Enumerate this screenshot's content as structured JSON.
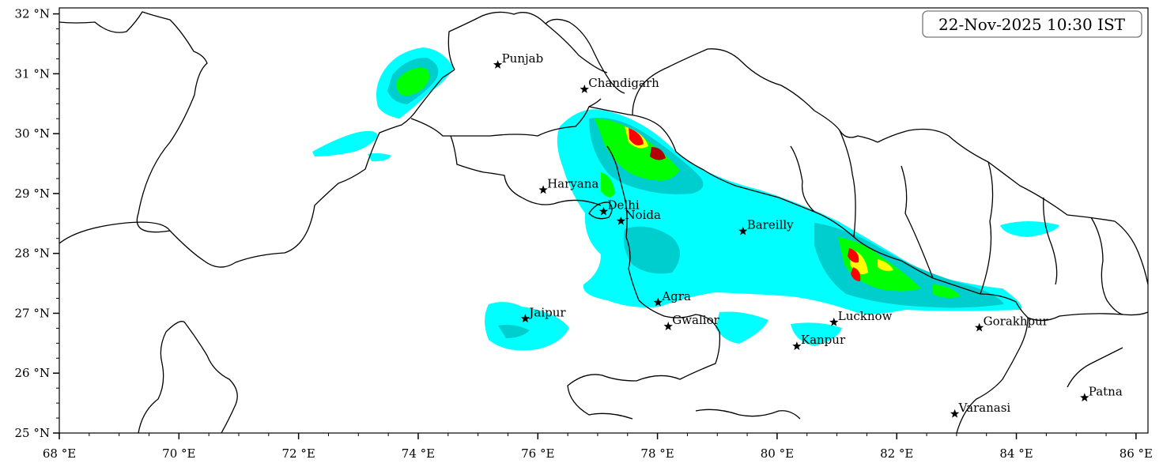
{
  "timestamp": "22-Nov-2025 10:30 IST",
  "colors": {
    "cyan": "#00ffff",
    "teal": "#00cdcd",
    "green": "#00ff00",
    "yellow": "#ffff00",
    "red": "#ff0000",
    "darkred": "#b00000",
    "border": "#000000"
  },
  "axes": {
    "lon_range": [
      68,
      86.2
    ],
    "lat_range": [
      25,
      32.1
    ],
    "x_ticks": [
      {
        "value": 68,
        "label": "68 °E"
      },
      {
        "value": 70,
        "label": "70 °E"
      },
      {
        "value": 72,
        "label": "72 °E"
      },
      {
        "value": 74,
        "label": "74 °E"
      },
      {
        "value": 76,
        "label": "76 °E"
      },
      {
        "value": 78,
        "label": "78 °E"
      },
      {
        "value": 80,
        "label": "80 °E"
      },
      {
        "value": 82,
        "label": "82 °E"
      },
      {
        "value": 84,
        "label": "84 °E"
      },
      {
        "value": 86,
        "label": "86 °E"
      }
    ],
    "y_ticks": [
      {
        "value": 25,
        "label": "25 °N"
      },
      {
        "value": 26,
        "label": "26 °N"
      },
      {
        "value": 27,
        "label": "27 °N"
      },
      {
        "value": 28,
        "label": "28 °N"
      },
      {
        "value": 29,
        "label": "29 °N"
      },
      {
        "value": 30,
        "label": "30 °N"
      },
      {
        "value": 31,
        "label": "31 °N"
      },
      {
        "value": 32,
        "label": "32 °N"
      }
    ]
  },
  "cities": [
    {
      "name": "Punjab",
      "lon": 75.33,
      "lat": 31.15
    },
    {
      "name": "Chandigarh",
      "lon": 76.78,
      "lat": 30.74
    },
    {
      "name": "Haryana",
      "lon": 76.09,
      "lat": 29.06
    },
    {
      "name": "Delhi",
      "lon": 77.1,
      "lat": 28.7
    },
    {
      "name": "Noida",
      "lon": 77.39,
      "lat": 28.54
    },
    {
      "name": "Bareilly",
      "lon": 79.43,
      "lat": 28.37
    },
    {
      "name": "Agra",
      "lon": 78.01,
      "lat": 27.18
    },
    {
      "name": "Jaipur",
      "lon": 75.79,
      "lat": 26.91
    },
    {
      "name": "Gwalior",
      "lon": 78.18,
      "lat": 26.78
    },
    {
      "name": "Lucknow",
      "lon": 80.95,
      "lat": 26.85
    },
    {
      "name": "Kanpur",
      "lon": 80.33,
      "lat": 26.45
    },
    {
      "name": "Gorakhpur",
      "lon": 83.38,
      "lat": 26.76
    },
    {
      "name": "Varanasi",
      "lon": 82.97,
      "lat": 25.32
    },
    {
      "name": "Patna",
      "lon": 85.14,
      "lat": 25.59
    }
  ]
}
